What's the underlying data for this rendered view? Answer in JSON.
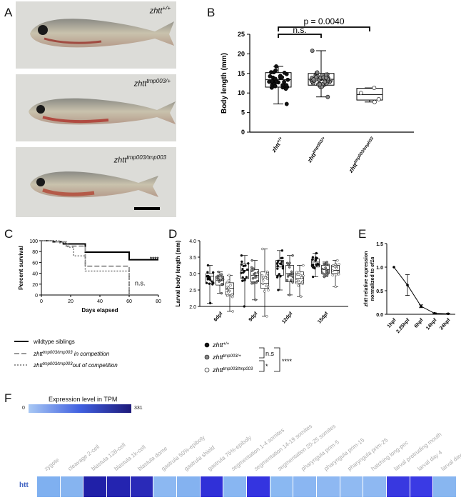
{
  "panels": {
    "A": "A",
    "B": "B",
    "C": "C",
    "D": "D",
    "E": "E",
    "F": "F"
  },
  "panel_a": {
    "labels": [
      {
        "base": "zhtt",
        "sup": "+/+"
      },
      {
        "base": "zhtt",
        "sup": "tmp003/+"
      },
      {
        "base": "zhtt",
        "sup": "tmp003/tmp003"
      }
    ]
  },
  "chart_data": [
    {
      "panel": "B",
      "type": "box",
      "ylabel": "Body length (mm)",
      "ylim": [
        0,
        25
      ],
      "yticks": [
        0,
        5,
        10,
        15,
        20,
        25
      ],
      "categories": [
        {
          "base": "zhtt",
          "sup": "+/+"
        },
        {
          "base": "zhtt",
          "sup": "tmp003/+"
        },
        {
          "base": "zhtt",
          "sup": "tmp003/tmp003"
        }
      ],
      "boxes": [
        {
          "min": 7.2,
          "q1": 11.5,
          "median": 13.4,
          "q3": 15.2,
          "max": 16.8
        },
        {
          "min": 9.0,
          "q1": 12.0,
          "median": 13.5,
          "q3": 15.0,
          "max": 20.8
        },
        {
          "min": 7.7,
          "q1": 8.2,
          "median": 9.6,
          "q3": 11.2,
          "max": 11.3
        }
      ],
      "annotations": [
        {
          "text": "p = 0.0040",
          "from": 0,
          "to": 2
        },
        {
          "text": "n.s.",
          "from": 0,
          "to": 1
        }
      ]
    },
    {
      "panel": "C",
      "type": "line",
      "ylabel": "Percent survival",
      "xlabel": "Days elapsed",
      "xlim": [
        0,
        80
      ],
      "ylim": [
        0,
        100
      ],
      "xticks": [
        0,
        20,
        40,
        60,
        80
      ],
      "yticks": [
        0,
        20,
        40,
        60,
        80,
        100
      ],
      "series": [
        {
          "name": "wildtype siblings",
          "style": "solid",
          "steps": [
            [
              0,
              100
            ],
            [
              8,
              100
            ],
            [
              8,
              98
            ],
            [
              15,
              98
            ],
            [
              15,
              94
            ],
            [
              30,
              94
            ],
            [
              30,
              79
            ],
            [
              60,
              79
            ],
            [
              60,
              65
            ],
            [
              80,
              65
            ]
          ]
        },
        {
          "name": "in competition",
          "style": "dash",
          "steps": [
            [
              0,
              100
            ],
            [
              10,
              100
            ],
            [
              10,
              98
            ],
            [
              17,
              98
            ],
            [
              17,
              90
            ],
            [
              30,
              90
            ],
            [
              30,
              53
            ],
            [
              60,
              53
            ],
            [
              60,
              0
            ]
          ]
        },
        {
          "name": "out of competition",
          "style": "dot",
          "steps": [
            [
              0,
              100
            ],
            [
              12,
              100
            ],
            [
              12,
              96
            ],
            [
              18,
              96
            ],
            [
              18,
              88
            ],
            [
              22,
              88
            ],
            [
              22,
              72
            ],
            [
              30,
              72
            ],
            [
              30,
              44
            ],
            [
              60,
              44
            ],
            [
              60,
              0
            ]
          ]
        }
      ],
      "annotations": [
        "****",
        "n.s."
      ],
      "legend": [
        {
          "text": "wildtype siblings",
          "base": "",
          "sup": "",
          "suffix": ""
        },
        {
          "text": "",
          "base": "zhtt",
          "sup": "tmp003/tmp003",
          "suffix": " in competition"
        },
        {
          "text": "",
          "base": "zhtt",
          "sup": "tmp003/tmp003",
          "suffix": "out of competition"
        }
      ]
    },
    {
      "panel": "D",
      "type": "box",
      "ylabel": "Larval body length (mm)",
      "ylim": [
        2.0,
        4.0
      ],
      "yticks": [
        2.0,
        2.5,
        3.0,
        3.5,
        4.0
      ],
      "categories": [
        "6dpf",
        "9dpf",
        "12dpf",
        "15dpf"
      ],
      "groups": [
        [
          {
            "min": 2.1,
            "q1": 2.7,
            "median": 2.92,
            "q3": 3.0,
            "max": 3.25
          },
          {
            "min": 2.4,
            "q1": 2.65,
            "median": 2.8,
            "q3": 2.92,
            "max": 3.05
          },
          {
            "min": 1.85,
            "q1": 2.35,
            "median": 2.55,
            "q3": 2.72,
            "max": 2.95
          }
        ],
        [
          {
            "min": 2.0,
            "q1": 2.85,
            "median": 3.1,
            "q3": 3.3,
            "max": 3.55
          },
          {
            "min": 2.2,
            "q1": 2.75,
            "median": 2.95,
            "q3": 3.12,
            "max": 3.4
          },
          {
            "min": 1.7,
            "q1": 2.55,
            "median": 2.7,
            "q3": 3.05,
            "max": 3.75
          }
        ],
        [
          {
            "min": 2.5,
            "q1": 2.95,
            "median": 3.2,
            "q3": 3.4,
            "max": 3.7
          },
          {
            "min": 2.35,
            "q1": 2.75,
            "median": 3.0,
            "q3": 3.25,
            "max": 3.55
          },
          {
            "min": 2.3,
            "q1": 2.7,
            "median": 2.85,
            "q3": 3.05,
            "max": 3.25
          }
        ],
        [
          {
            "min": 2.9,
            "q1": 3.2,
            "median": 3.35,
            "q3": 3.45,
            "max": 3.62
          },
          {
            "min": 2.9,
            "q1": 3.0,
            "median": 3.12,
            "q3": 3.25,
            "max": 3.35
          },
          {
            "min": 2.6,
            "q1": 3.0,
            "median": 3.1,
            "q3": 3.25,
            "max": 3.4
          }
        ]
      ],
      "legend": [
        {
          "base": "zhtt",
          "sup": "+/+"
        },
        {
          "base": "zhtt",
          "sup": "tmp003/+"
        },
        {
          "base": "zhtt",
          "sup": "tmp003/tmp003"
        }
      ],
      "sig": {
        "inner_top": "n.s",
        "inner_bottom": "*",
        "outer": "****"
      }
    },
    {
      "panel": "E",
      "type": "line",
      "ylabel_italic": "zhtt",
      "ylabel_rest": " relative expression",
      "ylabel2_plain": "normalized to ",
      "ylabel2_italic": "ef1a",
      "ylim": [
        0,
        1.5
      ],
      "yticks": [
        0.0,
        0.5,
        1.0,
        1.5
      ],
      "categories": [
        "1hpf",
        "2.25hpf",
        "6hpf",
        "14hpf",
        "24hpf"
      ],
      "values": [
        1.0,
        0.62,
        0.17,
        0.02,
        0.01
      ],
      "errors": [
        0,
        0.22,
        0.03,
        0.01,
        0.01
      ]
    },
    {
      "panel": "F",
      "type": "heatmap",
      "title": "Expression level in TPM",
      "scale_min": "0",
      "scale_max": "331",
      "row_label": "htt",
      "columns": [
        "zygote",
        "cleavage 2-cell",
        "blastula 128-cell",
        "blastula 1k-cell",
        "blastula dome",
        "gastrula 50%-epiboly",
        "gastrula shield",
        "gastrula 75%-epiboly",
        "segmentation 1-4 somites",
        "segmentation 14-19 somites",
        "segmentation 20-25 somites",
        "pharyngula prim-5",
        "pharyngula prim-15",
        "pharyngula prim-25",
        "hatching long-pec",
        "larval protruding mouth",
        "larval day 4",
        "larval day 5"
      ],
      "colors": [
        "#7fb0f0",
        "#86b4f0",
        "#2020a8",
        "#2424b0",
        "#2a2ab8",
        "#8cb8f2",
        "#84b2f0",
        "#3030d8",
        "#88b6f2",
        "#3434e0",
        "#8ab8f2",
        "#8ab6f2",
        "#8eb8f2",
        "#90baf2",
        "#8eb8f2",
        "#3838e0",
        "#3a3ae4",
        "#88b6f0"
      ]
    }
  ]
}
